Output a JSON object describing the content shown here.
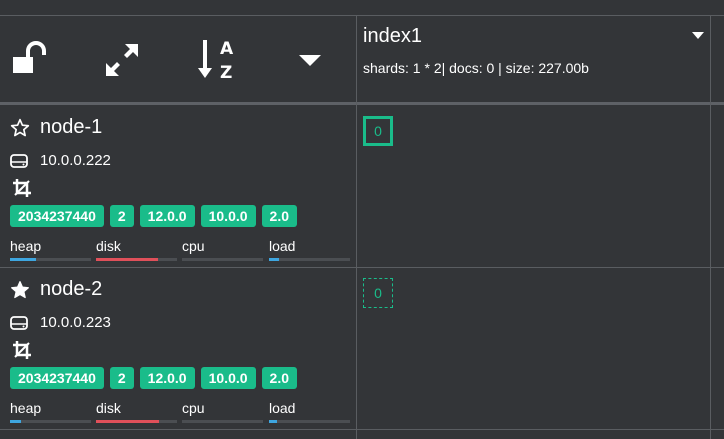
{
  "colors": {
    "background": "#333538",
    "accent": "#1abc8a",
    "heap": "#3ea6e0",
    "disk": "#e0505a",
    "load": "#3ea6e0"
  },
  "toolbar": {
    "icons": [
      "unlock-icon",
      "expand-icon",
      "sort-alpha-icon",
      "caret-down-icon"
    ]
  },
  "index": {
    "name": "index1",
    "stats": "shards: 1 * 2| docs: 0 | size: 227.00b"
  },
  "nodes": [
    {
      "name": "node-1",
      "star": "outline",
      "ip": "10.0.0.222",
      "badges": [
        "2034237440",
        "2",
        "12.0.0",
        "10.0.0",
        "2.0"
      ],
      "metrics": [
        {
          "label": "heap",
          "value": 0.32
        },
        {
          "label": "disk",
          "value": 0.76
        },
        {
          "label": "cpu",
          "value": 0
        },
        {
          "label": "load",
          "value": 0.12
        }
      ],
      "shard": {
        "label": "0",
        "kind": "primary"
      }
    },
    {
      "name": "node-2",
      "star": "filled",
      "ip": "10.0.0.223",
      "badges": [
        "2034237440",
        "2",
        "12.0.0",
        "10.0.0",
        "2.0"
      ],
      "metrics": [
        {
          "label": "heap",
          "value": 0.14
        },
        {
          "label": "disk",
          "value": 0.78
        },
        {
          "label": "cpu",
          "value": 0
        },
        {
          "label": "load",
          "value": 0.1
        }
      ],
      "shard": {
        "label": "0",
        "kind": "replica"
      }
    }
  ]
}
